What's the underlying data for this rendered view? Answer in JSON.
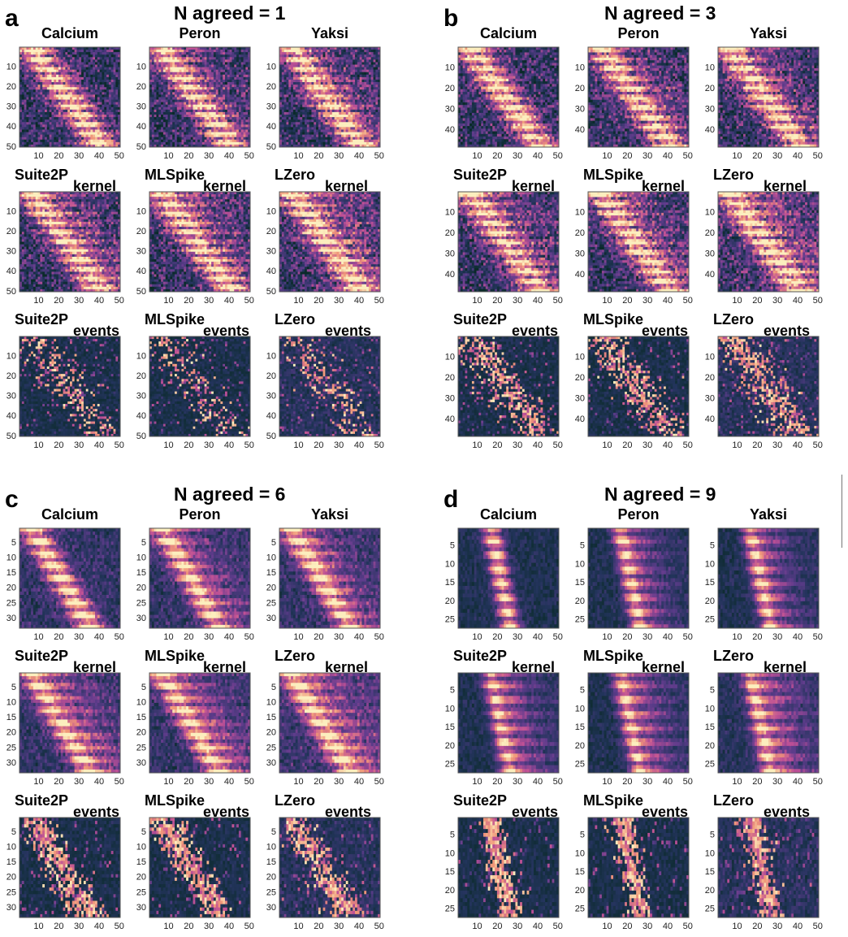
{
  "figure": {
    "panels": [
      {
        "letter": "a",
        "title": "N agreed = 1",
        "n_neurons": 50,
        "y_ticks": [
          10,
          20,
          30,
          40,
          50
        ],
        "x_ticks": [
          10,
          20,
          30,
          40,
          50
        ],
        "rows": [
          {
            "cells": [
              {
                "title": "Calcium",
                "sub": ""
              },
              {
                "title": "Peron",
                "sub": ""
              },
              {
                "title": "Yaksi",
                "sub": ""
              }
            ]
          },
          {
            "cells": [
              {
                "title": "Suite2P",
                "sub": "kernel"
              },
              {
                "title": "MLSpike",
                "sub": "kernel"
              },
              {
                "title": "LZero",
                "sub": "kernel"
              }
            ]
          },
          {
            "cells": [
              {
                "title": "Suite2P",
                "sub": "events"
              },
              {
                "title": "MLSpike",
                "sub": "events"
              },
              {
                "title": "LZero",
                "sub": "events"
              }
            ]
          }
        ]
      },
      {
        "letter": "b",
        "title": "N agreed = 3",
        "n_neurons": 48,
        "y_ticks": [
          10,
          20,
          30,
          40
        ],
        "x_ticks": [
          10,
          20,
          30,
          40,
          50
        ],
        "rows": [
          {
            "cells": [
              {
                "title": "Calcium",
                "sub": ""
              },
              {
                "title": "Peron",
                "sub": ""
              },
              {
                "title": "Yaksi",
                "sub": ""
              }
            ]
          },
          {
            "cells": [
              {
                "title": "Suite2P",
                "sub": "kernel"
              },
              {
                "title": "MLSpike",
                "sub": "kernel"
              },
              {
                "title": "LZero",
                "sub": "kernel"
              }
            ]
          },
          {
            "cells": [
              {
                "title": "Suite2P",
                "sub": "events"
              },
              {
                "title": "MLSpike",
                "sub": "events"
              },
              {
                "title": "LZero",
                "sub": "events"
              }
            ]
          }
        ]
      },
      {
        "letter": "c",
        "title": "N agreed = 6",
        "n_neurons": 33,
        "y_ticks": [
          5,
          10,
          15,
          20,
          25,
          30
        ],
        "x_ticks": [
          10,
          20,
          30,
          40,
          50
        ],
        "rows": [
          {
            "cells": [
              {
                "title": "Calcium",
                "sub": ""
              },
              {
                "title": "Peron",
                "sub": ""
              },
              {
                "title": "Yaksi",
                "sub": ""
              }
            ]
          },
          {
            "cells": [
              {
                "title": "Suite2P",
                "sub": "kernel"
              },
              {
                "title": "MLSpike",
                "sub": "kernel"
              },
              {
                "title": "LZero",
                "sub": "kernel"
              }
            ]
          },
          {
            "cells": [
              {
                "title": "Suite2P",
                "sub": "events"
              },
              {
                "title": "MLSpike",
                "sub": "events"
              },
              {
                "title": "LZero",
                "sub": "events"
              }
            ]
          }
        ]
      },
      {
        "letter": "d",
        "title": "N agreed = 9",
        "n_neurons": 27,
        "y_ticks": [
          5,
          10,
          15,
          20,
          25
        ],
        "x_ticks": [
          10,
          20,
          30,
          40,
          50
        ],
        "rows": [
          {
            "cells": [
              {
                "title": "Calcium",
                "sub": ""
              },
              {
                "title": "Peron",
                "sub": ""
              },
              {
                "title": "Yaksi",
                "sub": ""
              }
            ]
          },
          {
            "cells": [
              {
                "title": "Suite2P",
                "sub": "kernel"
              },
              {
                "title": "MLSpike",
                "sub": "kernel"
              },
              {
                "title": "LZero",
                "sub": "kernel"
              }
            ]
          },
          {
            "cells": [
              {
                "title": "Suite2P",
                "sub": "events"
              },
              {
                "title": "MLSpike",
                "sub": "events"
              },
              {
                "title": "LZero",
                "sub": "events"
              }
            ]
          }
        ]
      }
    ]
  },
  "chart_data": [
    {
      "type": "heatmap",
      "panel": "a",
      "title": "N agreed = 1",
      "n_rows": 50,
      "n_cols": 50,
      "xlim": [
        1,
        50
      ],
      "ylim": [
        1,
        50
      ],
      "colormap": "magma",
      "methods": [
        "Calcium",
        "Peron",
        "Yaksi",
        "Suite2P kernel",
        "MLSpike kernel",
        "LZero kernel",
        "Suite2P events",
        "MLSpike events",
        "LZero events"
      ]
    },
    {
      "type": "heatmap",
      "panel": "b",
      "title": "N agreed = 3",
      "n_rows": 48,
      "n_cols": 50,
      "xlim": [
        1,
        50
      ],
      "ylim": [
        1,
        48
      ],
      "colormap": "magma",
      "methods": [
        "Calcium",
        "Peron",
        "Yaksi",
        "Suite2P kernel",
        "MLSpike kernel",
        "LZero kernel",
        "Suite2P events",
        "MLSpike events",
        "LZero events"
      ]
    },
    {
      "type": "heatmap",
      "panel": "c",
      "title": "N agreed = 6",
      "n_rows": 33,
      "n_cols": 50,
      "xlim": [
        1,
        50
      ],
      "ylim": [
        1,
        33
      ],
      "colormap": "magma",
      "methods": [
        "Calcium",
        "Peron",
        "Yaksi",
        "Suite2P kernel",
        "MLSpike kernel",
        "LZero kernel",
        "Suite2P events",
        "MLSpike events",
        "LZero events"
      ]
    },
    {
      "type": "heatmap",
      "panel": "d",
      "title": "N agreed = 9",
      "n_rows": 27,
      "n_cols": 50,
      "xlim": [
        1,
        50
      ],
      "ylim": [
        1,
        27
      ],
      "colormap": "magma",
      "methods": [
        "Calcium",
        "Peron",
        "Yaksi",
        "Suite2P kernel",
        "MLSpike kernel",
        "LZero kernel",
        "Suite2P events",
        "MLSpike events",
        "LZero events"
      ]
    }
  ],
  "colors": {
    "low": "#0d2b2b",
    "mid": "#7a3f8a",
    "high": "#fbe7b0",
    "frame": "#555555"
  }
}
